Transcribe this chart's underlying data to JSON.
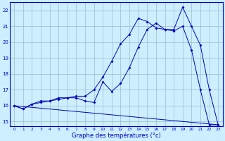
{
  "title": "",
  "xlabel": "Graphe des températures (°c)",
  "ylabel": "",
  "bg_color": "#cceeff",
  "line_color": "#0000bb",
  "grid_color": "#99bbcc",
  "xlim": [
    -0.5,
    23.5
  ],
  "ylim": [
    14.7,
    22.5
  ],
  "xticks": [
    0,
    1,
    2,
    3,
    4,
    5,
    6,
    7,
    8,
    9,
    10,
    11,
    12,
    13,
    14,
    15,
    16,
    17,
    18,
    19,
    20,
    21,
    22,
    23
  ],
  "yticks": [
    15,
    16,
    17,
    18,
    19,
    20,
    21,
    22
  ],
  "line1_x": [
    0,
    1,
    2,
    3,
    4,
    5,
    6,
    7,
    8,
    9,
    10,
    11,
    12,
    13,
    14,
    15,
    16,
    17,
    18,
    19,
    20,
    21,
    22,
    23
  ],
  "line1_y": [
    16.0,
    15.8,
    16.1,
    16.2,
    16.3,
    16.4,
    16.5,
    16.5,
    16.3,
    16.2,
    17.5,
    16.9,
    17.4,
    18.4,
    19.7,
    20.8,
    21.2,
    20.8,
    20.8,
    22.2,
    21.0,
    19.8,
    17.0,
    14.8
  ],
  "line2_x": [
    0,
    1,
    2,
    3,
    4,
    5,
    6,
    7,
    8,
    9,
    10,
    11,
    12,
    13,
    14,
    15,
    16,
    17,
    18,
    19,
    20,
    21,
    22,
    23
  ],
  "line2_y": [
    16.0,
    15.8,
    16.1,
    16.3,
    16.3,
    16.5,
    16.5,
    16.6,
    16.6,
    17.0,
    17.8,
    18.8,
    19.9,
    20.5,
    21.5,
    21.3,
    20.9,
    20.8,
    20.7,
    21.0,
    19.5,
    17.0,
    14.8,
    14.8
  ],
  "line3_x": [
    0,
    23
  ],
  "line3_y": [
    16.0,
    14.8
  ]
}
